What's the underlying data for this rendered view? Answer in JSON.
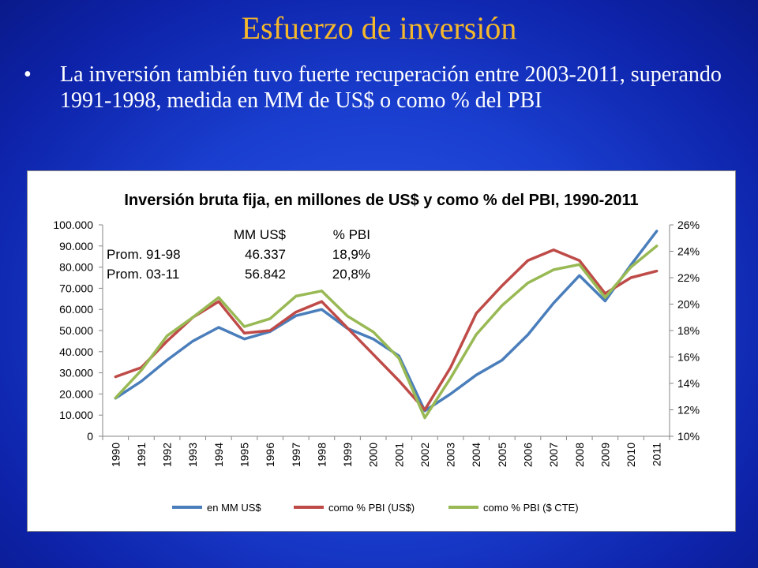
{
  "slide": {
    "title": "Esfuerzo de inversión",
    "bullet_marker": "•",
    "bullet_text": "La inversión también tuvo fuerte recuperación entre 2003-2011, superando 1991-1998, medida en MM de US$ o como % del PBI"
  },
  "colors": {
    "title": "#f5b82a",
    "series": [
      "#4a7ebb",
      "#be4b48",
      "#98b954"
    ]
  },
  "chart_data": {
    "type": "line",
    "title": "Inversión bruta fija, en millones de US$ y como % del PBI, 1990-2011",
    "x": [
      "1990",
      "1991",
      "1992",
      "1993",
      "1994",
      "1995",
      "1996",
      "1997",
      "1998",
      "1999",
      "2000",
      "2001",
      "2002",
      "2003",
      "2004",
      "2005",
      "2006",
      "2007",
      "2008",
      "2009",
      "2010",
      "2011"
    ],
    "y_left": {
      "min": 0,
      "max": 100000,
      "ticks": [
        0,
        10000,
        20000,
        30000,
        40000,
        50000,
        60000,
        70000,
        80000,
        90000,
        100000
      ],
      "tick_labels": [
        "0",
        "10.000",
        "20.000",
        "30.000",
        "40.000",
        "50.000",
        "60.000",
        "70.000",
        "80.000",
        "90.000",
        "100.000"
      ]
    },
    "y_right": {
      "min": 10,
      "max": 26,
      "ticks": [
        10,
        12,
        14,
        16,
        18,
        20,
        22,
        24,
        26
      ],
      "tick_labels": [
        "10%",
        "12%",
        "14%",
        "16%",
        "18%",
        "20%",
        "22%",
        "24%",
        "26%"
      ]
    },
    "grid": false,
    "legend_position": "bottom",
    "series": [
      {
        "name": "en MM US$",
        "axis": "left",
        "values": [
          18000,
          26000,
          36000,
          45000,
          51500,
          46000,
          49500,
          57000,
          60000,
          51000,
          46000,
          38000,
          12000,
          20000,
          29000,
          36000,
          48000,
          63000,
          76000,
          64000,
          81000,
          97000
        ]
      },
      {
        "name": "como % PBI (US$)",
        "axis": "right",
        "values": [
          14.5,
          15.2,
          17.2,
          19.0,
          20.2,
          17.8,
          18.0,
          19.4,
          20.2,
          18.2,
          16.2,
          14.2,
          12.0,
          15.2,
          19.3,
          21.4,
          23.3,
          24.1,
          23.3,
          20.8,
          22.0,
          22.5
        ]
      },
      {
        "name": "como % PBI ($ CTE)",
        "axis": "right",
        "values": [
          12.9,
          15.0,
          17.6,
          19.0,
          20.5,
          18.3,
          18.9,
          20.6,
          21.0,
          19.1,
          17.9,
          15.9,
          11.4,
          14.4,
          17.7,
          19.9,
          21.6,
          22.6,
          23.0,
          20.5,
          22.8,
          24.4
        ]
      }
    ],
    "annotation_table": {
      "header": [
        "",
        "MM US$",
        "% PBI"
      ],
      "rows": [
        [
          "Prom. 91-98",
          "46.337",
          "18,9%"
        ],
        [
          "Prom. 03-11",
          "56.842",
          "20,8%"
        ]
      ]
    }
  }
}
